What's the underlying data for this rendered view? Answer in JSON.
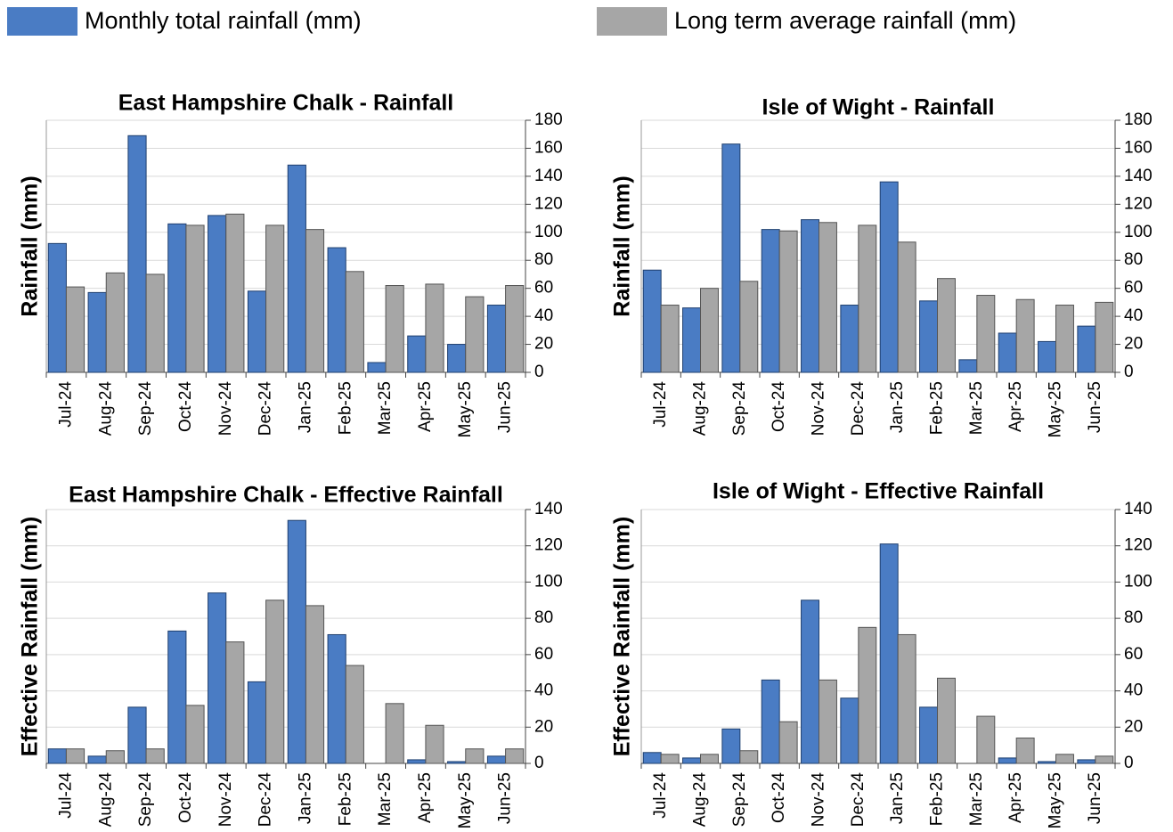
{
  "legend": [
    {
      "name": "Monthly total rainfall (mm)",
      "color": "#4a7cc4"
    },
    {
      "name": "Long term average rainfall (mm)",
      "color": "#a6a6a6"
    }
  ],
  "chart_data": [
    {
      "type": "bar",
      "title": "East Hampshire Chalk - Rainfall",
      "y_label": "Rainfall (mm)",
      "categories": [
        "Jul-24",
        "Aug-24",
        "Sep-24",
        "Oct-24",
        "Nov-24",
        "Dec-24",
        "Jan-25",
        "Feb-25",
        "Mar-25",
        "Apr-25",
        "May-25",
        "Jun-25"
      ],
      "series": [
        {
          "values": [
            92,
            57,
            169,
            106,
            112,
            58,
            148,
            89,
            7,
            26,
            20,
            48
          ]
        },
        {
          "values": [
            61,
            71,
            70,
            105,
            113,
            105,
            102,
            72,
            62,
            63,
            54,
            62
          ]
        }
      ],
      "ylim": [
        0,
        180
      ],
      "yticks": [
        0,
        20,
        40,
        60,
        80,
        100,
        120,
        140,
        160,
        180
      ],
      "grid": true
    },
    {
      "type": "bar",
      "title": "Isle of Wight - Rainfall",
      "y_label": "Rainfall (mm)",
      "categories": [
        "Jul-24",
        "Aug-24",
        "Sep-24",
        "Oct-24",
        "Nov-24",
        "Dec-24",
        "Jan-25",
        "Feb-25",
        "Mar-25",
        "Apr-25",
        "May-25",
        "Jun-25"
      ],
      "series": [
        {
          "values": [
            73,
            46,
            163,
            102,
            109,
            48,
            136,
            51,
            9,
            28,
            22,
            33
          ]
        },
        {
          "values": [
            48,
            60,
            65,
            101,
            107,
            105,
            93,
            67,
            55,
            52,
            48,
            50
          ]
        }
      ],
      "ylim": [
        0,
        180
      ],
      "yticks": [
        0,
        20,
        40,
        60,
        80,
        100,
        120,
        140,
        160,
        180
      ],
      "grid": true
    },
    {
      "type": "bar",
      "title": "East Hampshire Chalk - Effective Rainfall",
      "y_label": "Effective Rainfall (mm)",
      "categories": [
        "Jul-24",
        "Aug-24",
        "Sep-24",
        "Oct-24",
        "Nov-24",
        "Dec-24",
        "Jan-25",
        "Feb-25",
        "Mar-25",
        "Apr-25",
        "May-25",
        "Jun-25"
      ],
      "series": [
        {
          "values": [
            8,
            4,
            31,
            73,
            94,
            45,
            134,
            71,
            0,
            2,
            1,
            4
          ]
        },
        {
          "values": [
            8,
            7,
            8,
            32,
            67,
            90,
            87,
            54,
            33,
            21,
            8,
            8
          ]
        }
      ],
      "ylim": [
        0,
        140
      ],
      "yticks": [
        0,
        20,
        40,
        60,
        80,
        100,
        120,
        140
      ],
      "grid": true
    },
    {
      "type": "bar",
      "title": "Isle of Wight - Effective Rainfall",
      "y_label": "Effective Rainfall (mm)",
      "categories": [
        "Jul-24",
        "Aug-24",
        "Sep-24",
        "Oct-24",
        "Nov-24",
        "Dec-24",
        "Jan-25",
        "Feb-25",
        "Mar-25",
        "Apr-25",
        "May-25",
        "Jun-25"
      ],
      "series": [
        {
          "values": [
            6,
            3,
            19,
            46,
            90,
            36,
            121,
            31,
            0,
            3,
            1,
            2
          ]
        },
        {
          "values": [
            5,
            5,
            7,
            23,
            46,
            75,
            71,
            47,
            26,
            14,
            5,
            4
          ]
        }
      ],
      "ylim": [
        0,
        140
      ],
      "yticks": [
        0,
        20,
        40,
        60,
        80,
        100,
        120,
        140
      ],
      "grid": true
    }
  ]
}
